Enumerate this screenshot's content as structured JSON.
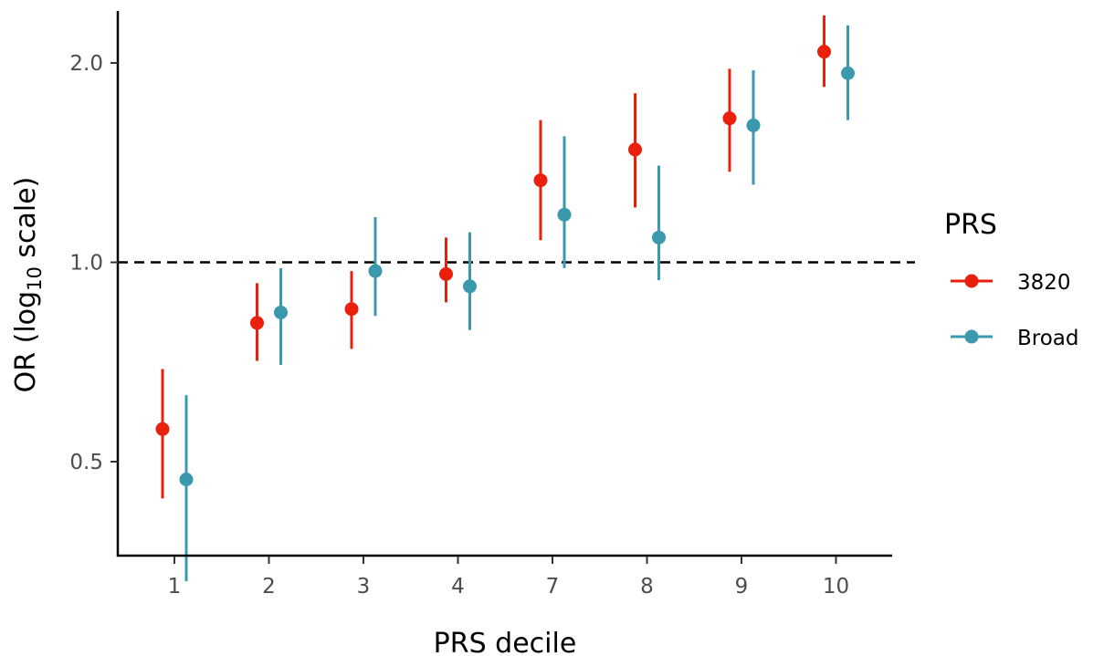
{
  "chart_data": {
    "type": "scatter",
    "categories": [
      "1",
      "2",
      "3",
      "4",
      "7",
      "8",
      "9",
      "10"
    ],
    "xlabel": "PRS decile",
    "ylabel": {
      "prefix": "OR (log",
      "subscript": "10",
      "suffix": " scale)"
    },
    "yscale": "log10",
    "ylim": [
      0.31,
      2.65
    ],
    "yticks": [
      0.5,
      1.0,
      2.0
    ],
    "ytick_labels": [
      "0.5",
      "1.0",
      "2.0"
    ],
    "reference_line": {
      "y": 1.0,
      "style": "dashed"
    },
    "grid": false,
    "legend": {
      "title": "PRS",
      "position": "right"
    },
    "series": [
      {
        "name": "3820",
        "color": "#e8200c",
        "values": [
          0.56,
          0.81,
          0.85,
          0.96,
          1.33,
          1.48,
          1.65,
          2.08
        ],
        "lower": [
          0.44,
          0.71,
          0.74,
          0.87,
          1.08,
          1.21,
          1.37,
          1.84
        ],
        "upper": [
          0.69,
          0.93,
          0.97,
          1.09,
          1.64,
          1.8,
          1.96,
          2.36
        ]
      },
      {
        "name": "Broad",
        "color": "#3a99ad",
        "values": [
          0.47,
          0.84,
          0.97,
          0.92,
          1.18,
          1.09,
          1.61,
          1.93
        ],
        "lower": [
          0.33,
          0.7,
          0.83,
          0.79,
          0.98,
          0.94,
          1.31,
          1.64
        ],
        "upper": [
          0.63,
          0.98,
          1.17,
          1.11,
          1.55,
          1.4,
          1.95,
          2.28
        ]
      }
    ]
  }
}
